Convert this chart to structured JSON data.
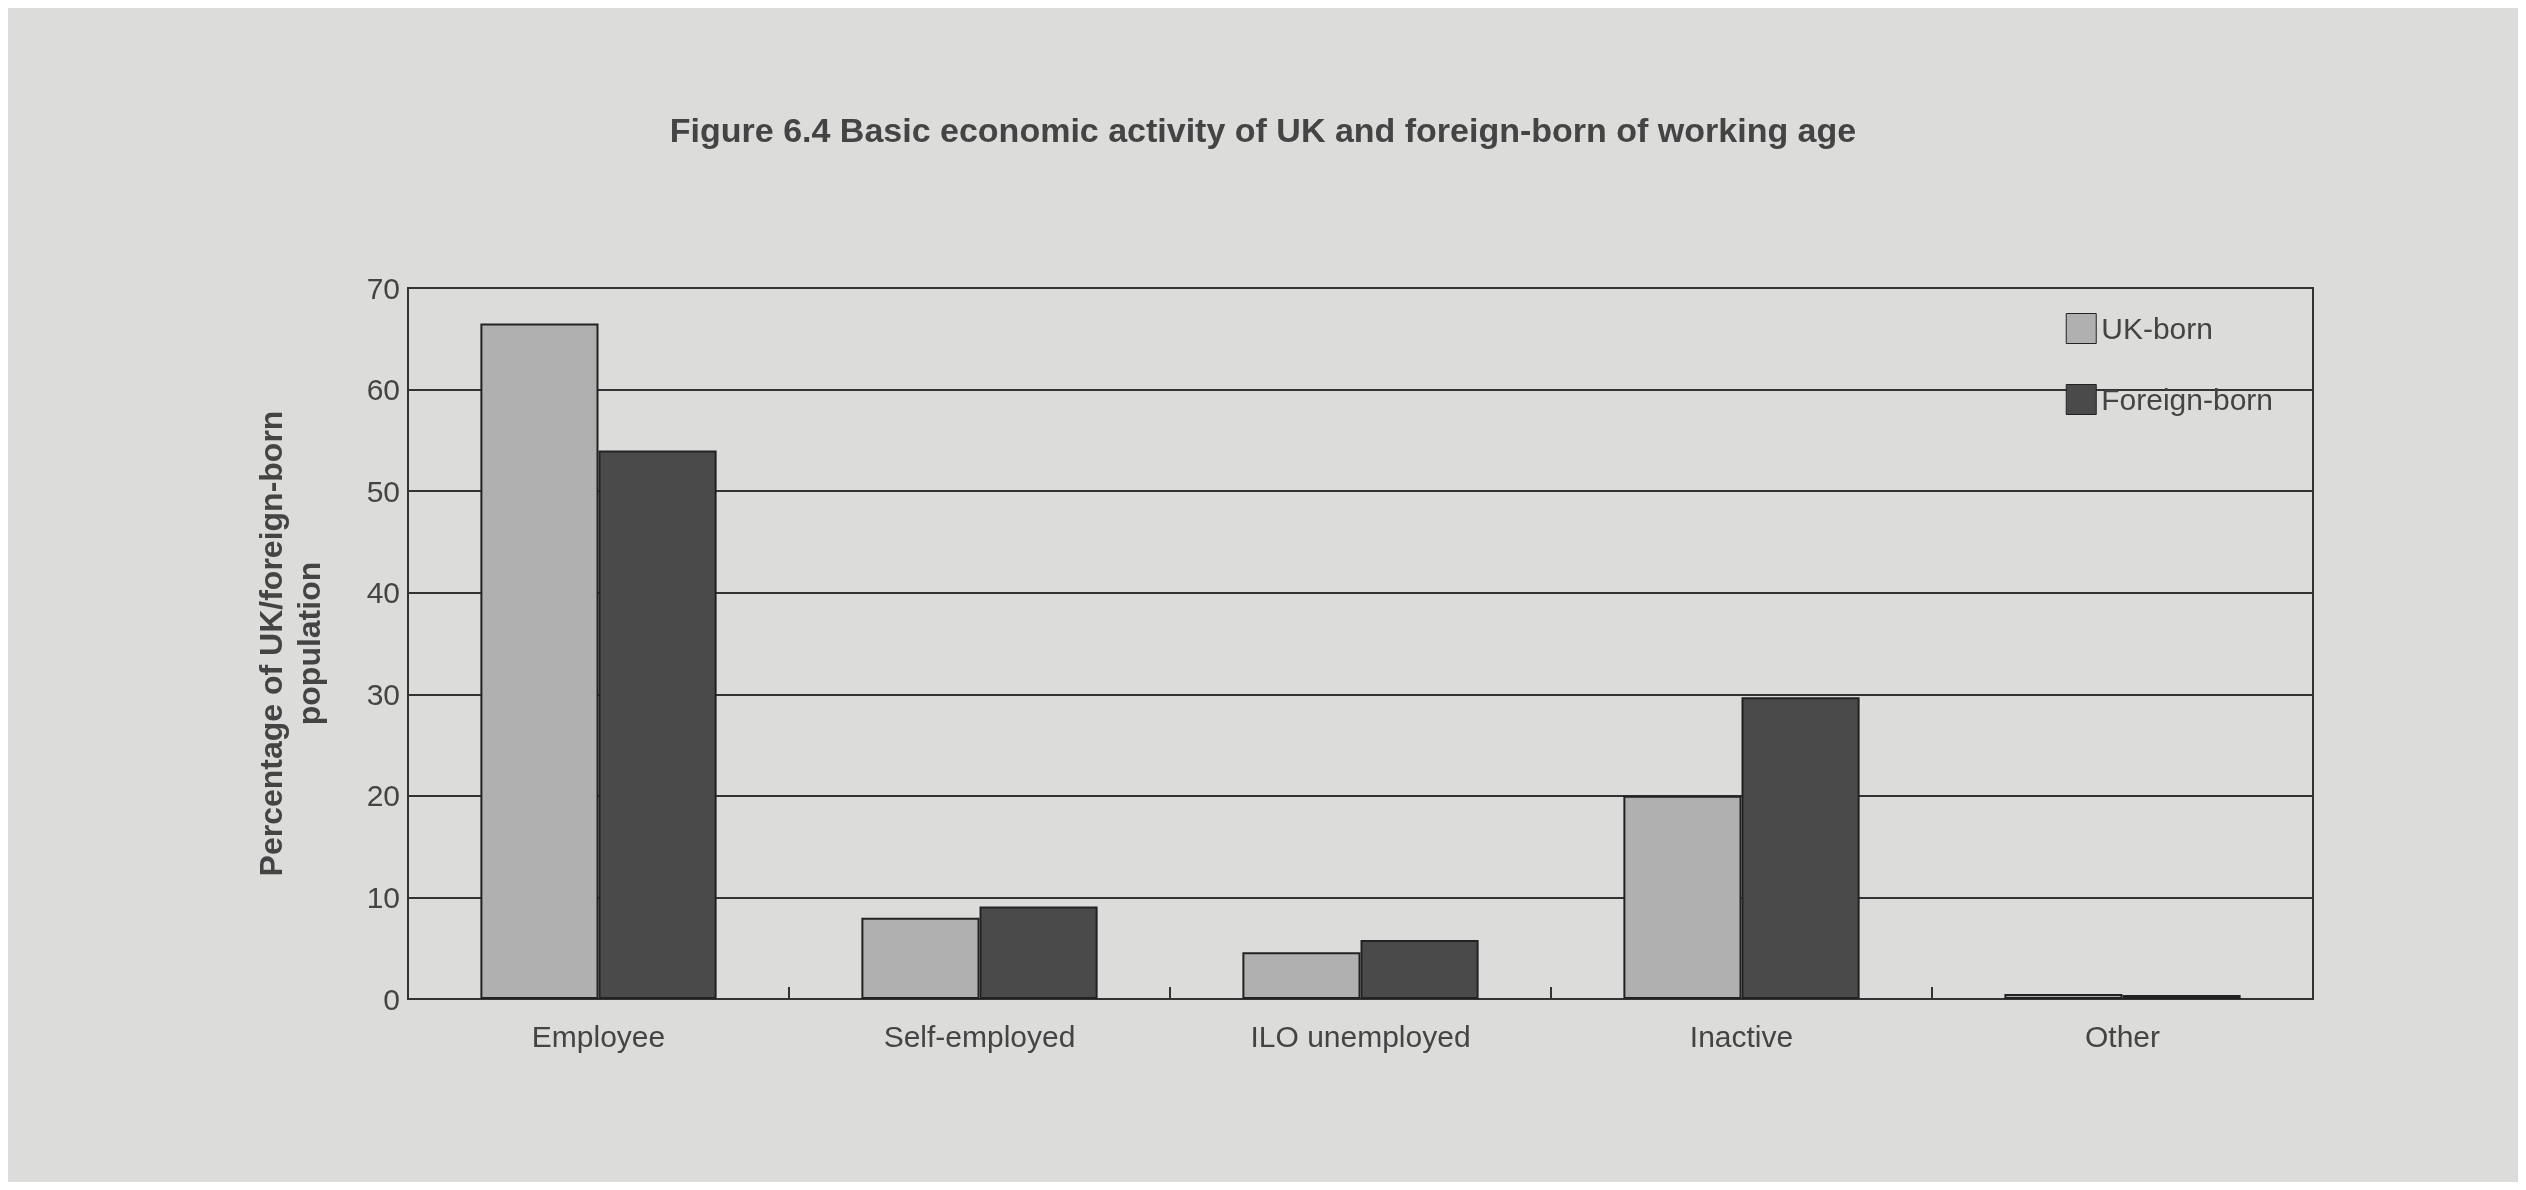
{
  "chart_data": {
    "type": "bar",
    "title": "Figure 6.4 Basic economic activity of UK and foreign-born of working age",
    "ylabel": "Percentage of UK/foreign-born\npopulation",
    "categories": [
      "Employee",
      "Self-employed",
      "ILO unemployed",
      "Inactive",
      "Other"
    ],
    "series": [
      {
        "name": "UK-born",
        "color": "#b0b0b0",
        "values": [
          66.5,
          8,
          4.6,
          20,
          0.5
        ]
      },
      {
        "name": "Foreign-born",
        "color": "#4a4a4a",
        "values": [
          54,
          9.1,
          5.8,
          29.7,
          0.4
        ]
      }
    ],
    "ylim": [
      0,
      70
    ],
    "yticks": [
      0,
      10,
      20,
      30,
      40,
      50,
      60,
      70
    ],
    "grid": "y",
    "legend": "top right"
  }
}
